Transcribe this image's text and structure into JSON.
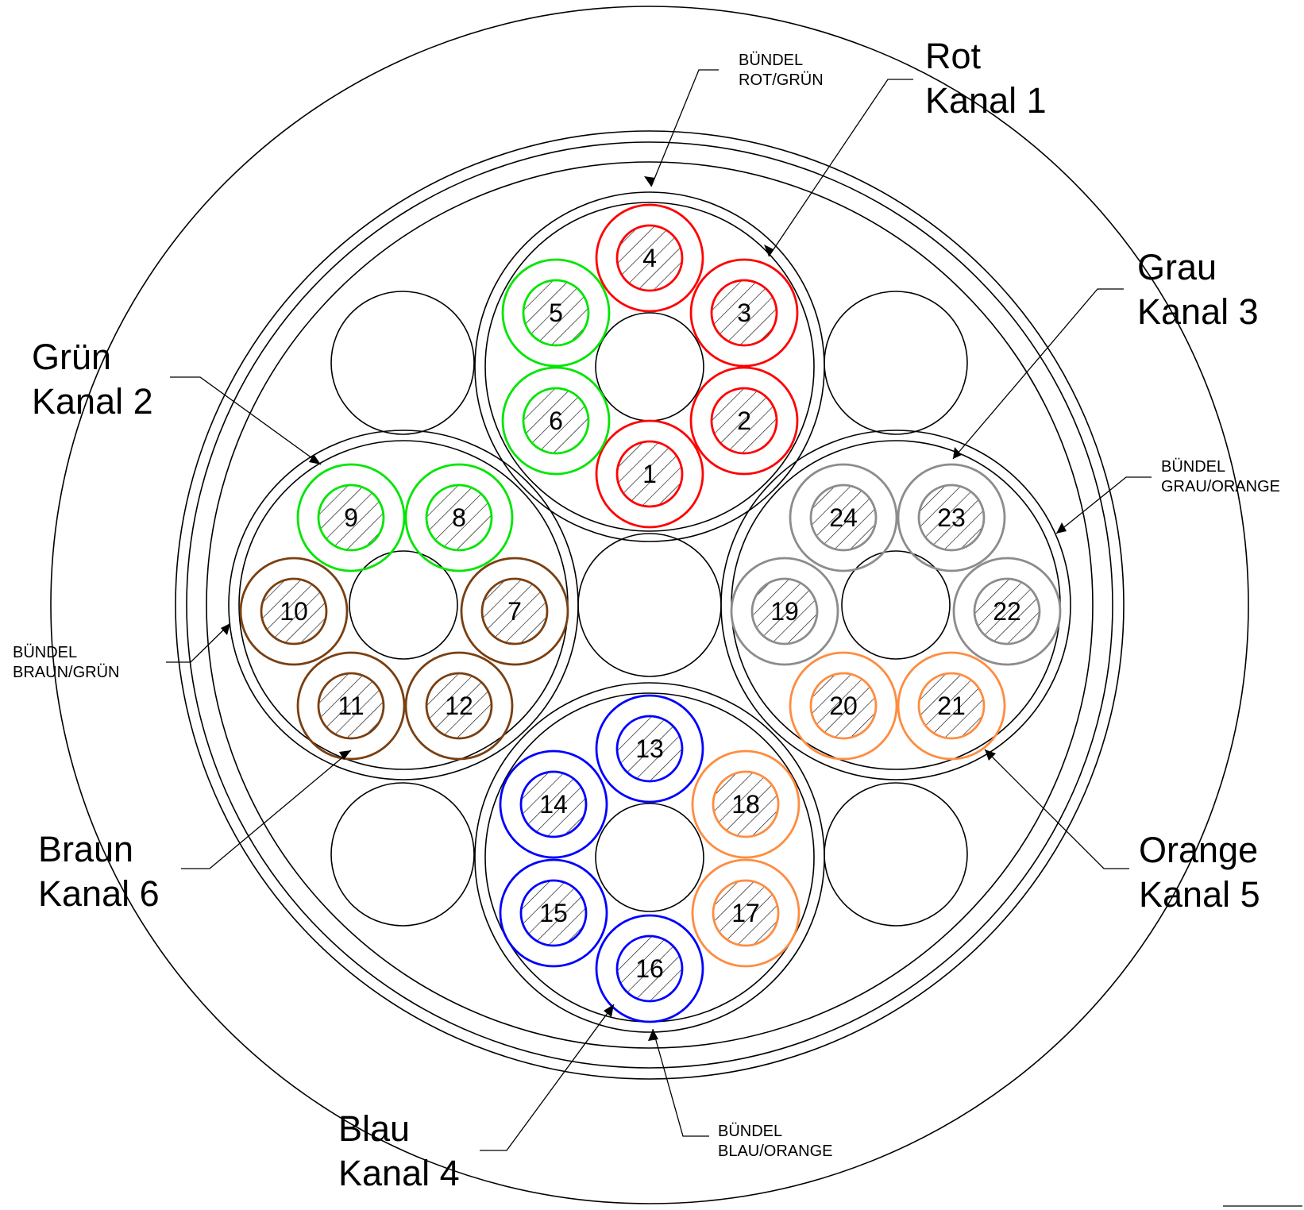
{
  "colors": {
    "rot": "#ff0000",
    "gruen": "#00e600",
    "grau": "#8c8c8c",
    "blau": "#0000ff",
    "orange": "#ff8c40",
    "braun": "#7a3f10",
    "outline": "#000000"
  },
  "channel_labels": [
    {
      "id": "rot",
      "line1": "Rot",
      "line2": "Kanal 1"
    },
    {
      "id": "gruen",
      "line1": "Grün",
      "line2": "Kanal 2"
    },
    {
      "id": "grau",
      "line1": "Grau",
      "line2": "Kanal 3"
    },
    {
      "id": "blau",
      "line1": "Blau",
      "line2": "Kanal 4"
    },
    {
      "id": "orange",
      "line1": "Orange",
      "line2": "Kanal 5"
    },
    {
      "id": "braun",
      "line1": "Braun",
      "line2": "Kanal 6"
    }
  ],
  "bundle_labels": [
    {
      "id": "rot-gruen",
      "line1": "BÜNDEL",
      "line2": "ROT/GRÜN"
    },
    {
      "id": "grau-orange",
      "line1": "BÜNDEL",
      "line2": "GRAU/ORANGE"
    },
    {
      "id": "braun-gruen",
      "line1": "BÜNDEL",
      "line2": "BRAUN/GRÜN"
    },
    {
      "id": "blau-orange",
      "line1": "BÜNDEL",
      "line2": "BLAU/ORANGE"
    }
  ],
  "bundles": [
    {
      "id": "top",
      "fibers": [
        {
          "n": "1",
          "color": "rot"
        },
        {
          "n": "2",
          "color": "rot"
        },
        {
          "n": "3",
          "color": "rot"
        },
        {
          "n": "4",
          "color": "rot"
        },
        {
          "n": "5",
          "color": "gruen"
        },
        {
          "n": "6",
          "color": "gruen"
        }
      ]
    },
    {
      "id": "left",
      "fibers": [
        {
          "n": "7",
          "color": "braun"
        },
        {
          "n": "8",
          "color": "gruen"
        },
        {
          "n": "9",
          "color": "gruen"
        },
        {
          "n": "10",
          "color": "braun"
        },
        {
          "n": "11",
          "color": "braun"
        },
        {
          "n": "12",
          "color": "braun"
        }
      ]
    },
    {
      "id": "bottom",
      "fibers": [
        {
          "n": "13",
          "color": "blau"
        },
        {
          "n": "14",
          "color": "blau"
        },
        {
          "n": "15",
          "color": "blau"
        },
        {
          "n": "16",
          "color": "blau"
        },
        {
          "n": "17",
          "color": "orange"
        },
        {
          "n": "18",
          "color": "orange"
        }
      ]
    },
    {
      "id": "right",
      "fibers": [
        {
          "n": "19",
          "color": "grau"
        },
        {
          "n": "20",
          "color": "orange"
        },
        {
          "n": "21",
          "color": "orange"
        },
        {
          "n": "22",
          "color": "grau"
        },
        {
          "n": "23",
          "color": "grau"
        },
        {
          "n": "24",
          "color": "grau"
        }
      ]
    }
  ]
}
